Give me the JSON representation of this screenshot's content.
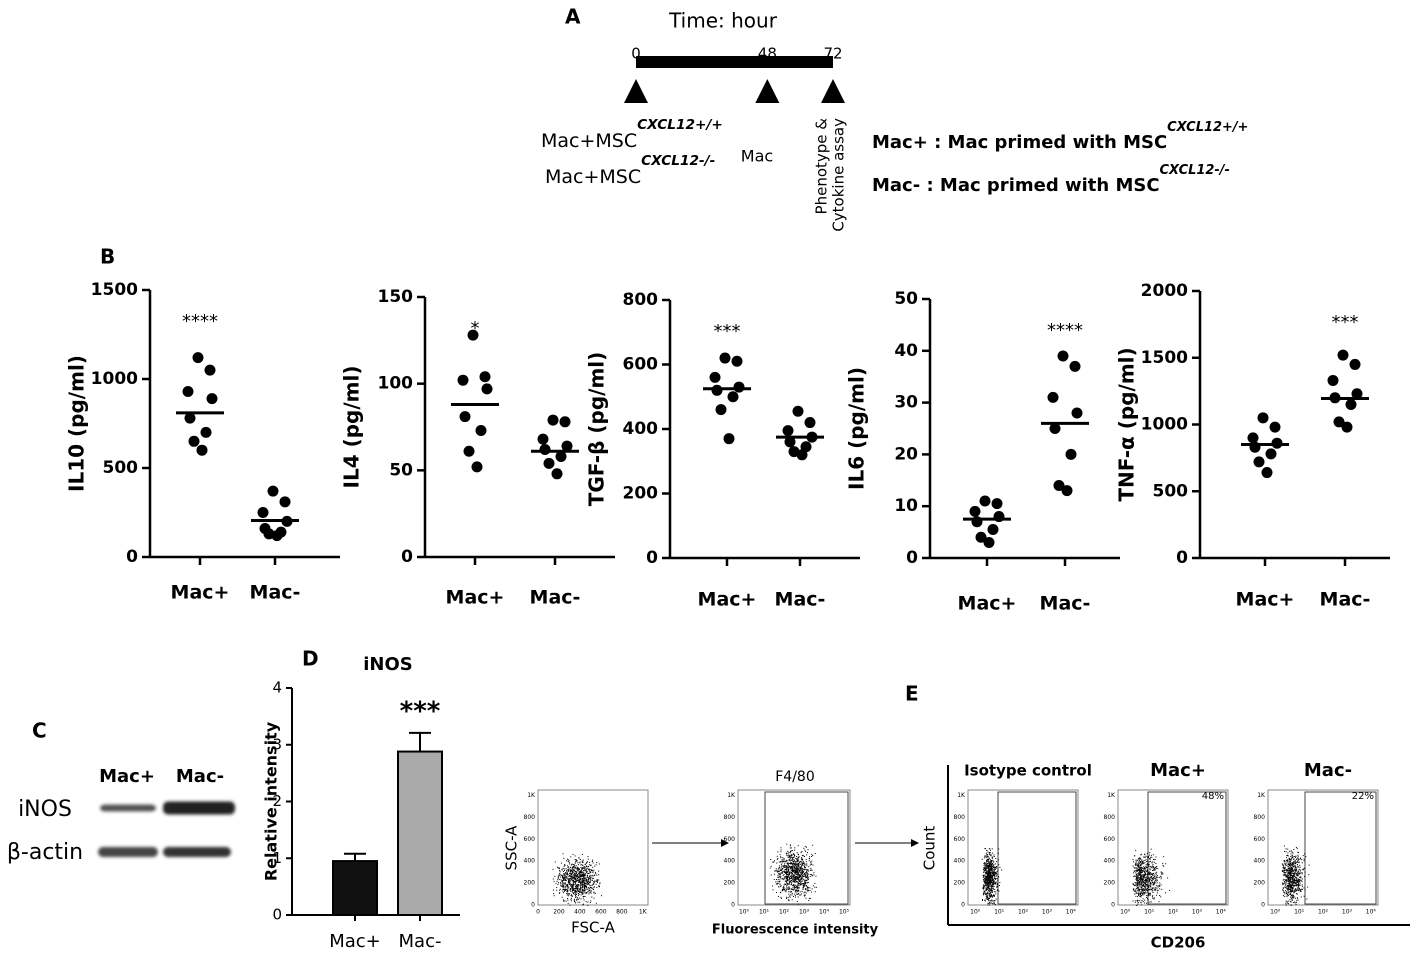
{
  "panels": {
    "A": "A",
    "B": "B",
    "C": "C",
    "D": "D",
    "E": "E"
  },
  "timeline": {
    "title": "Time: hour",
    "ticks": [
      0,
      48,
      72
    ],
    "xlim": [
      0,
      72
    ],
    "start_labels": [
      {
        "text": "Mac+MSC",
        "sup": "CXCL12+/+"
      },
      {
        "text": "Mac+MSC",
        "sup": "CXCL12-/-"
      }
    ],
    "mid_label": "Mac",
    "end_label": [
      "Phenotype &",
      "Cytokine assay"
    ],
    "legend": [
      {
        "text": "Mac+ : Mac primed with MSC",
        "sup": "CXCL12+/+"
      },
      {
        "text": "Mac- : Mac primed with MSC",
        "sup": "CXCL12-/-"
      }
    ]
  },
  "chart_data": [
    {
      "type": "strip",
      "ylabel": "IL10 (pg/ml)",
      "categories": [
        "Mac+",
        "Mac-"
      ],
      "significance": [
        "****",
        null
      ],
      "color": "#000000",
      "ylim": [
        0,
        1500
      ],
      "yticks": [
        0,
        500,
        1000,
        1500
      ],
      "groups": [
        {
          "values": [
            1120,
            1050,
            930,
            890,
            780,
            700,
            650,
            600
          ],
          "mean": 810
        },
        {
          "values": [
            370,
            310,
            250,
            200,
            160,
            140,
            130,
            120
          ],
          "mean": 205
        }
      ]
    },
    {
      "type": "strip",
      "ylabel": "IL4 (pg/ml)",
      "categories": [
        "Mac+",
        "Mac-"
      ],
      "significance": [
        "*",
        null
      ],
      "color": "#000000",
      "ylim": [
        0,
        150
      ],
      "yticks": [
        0,
        50,
        100,
        150
      ],
      "groups": [
        {
          "values": [
            128,
            104,
            102,
            97,
            81,
            73,
            61,
            52
          ],
          "mean": 88
        },
        {
          "values": [
            79,
            78,
            68,
            64,
            62,
            58,
            54,
            48
          ],
          "mean": 61
        }
      ]
    },
    {
      "type": "strip",
      "ylabel": "TGF-β (pg/ml)",
      "categories": [
        "Mac+",
        "Mac-"
      ],
      "significance": [
        "***",
        null
      ],
      "color": "#000000",
      "ylim": [
        0,
        800
      ],
      "yticks": [
        0,
        200,
        400,
        600,
        800
      ],
      "groups": [
        {
          "values": [
            620,
            610,
            560,
            530,
            520,
            500,
            460,
            370
          ],
          "mean": 525
        },
        {
          "values": [
            455,
            420,
            395,
            375,
            360,
            345,
            330,
            320
          ],
          "mean": 375
        }
      ]
    },
    {
      "type": "strip",
      "ylabel": "IL6 (pg/ml)",
      "categories": [
        "Mac+",
        "Mac-"
      ],
      "significance": [
        null,
        "****"
      ],
      "color": "#000000",
      "ylim": [
        0,
        50
      ],
      "yticks": [
        0,
        10,
        20,
        30,
        40,
        50
      ],
      "groups": [
        {
          "values": [
            11,
            10.5,
            9,
            8,
            7,
            5.5,
            4,
            3
          ],
          "mean": 7.5
        },
        {
          "values": [
            39,
            37,
            31,
            28,
            25,
            20,
            14,
            13
          ],
          "mean": 26
        }
      ]
    },
    {
      "type": "strip",
      "ylabel": "TNF-α (pg/ml)",
      "categories": [
        "Mac+",
        "Mac-"
      ],
      "significance": [
        null,
        "***"
      ],
      "color": "#000000",
      "ylim": [
        0,
        2000
      ],
      "yticks": [
        0,
        500,
        1000,
        1500,
        2000
      ],
      "groups": [
        {
          "values": [
            1050,
            980,
            900,
            860,
            830,
            780,
            720,
            640
          ],
          "mean": 850
        },
        {
          "values": [
            1520,
            1450,
            1330,
            1230,
            1200,
            1150,
            1020,
            980
          ],
          "mean": 1195
        }
      ]
    },
    {
      "type": "bar",
      "title": "iNOS",
      "ylabel": "Relative intensity",
      "categories": [
        "Mac+",
        "Mac-"
      ],
      "significance": [
        null,
        "***"
      ],
      "values": [
        0.95,
        2.88
      ],
      "errors": [
        0.13,
        0.33
      ],
      "colors": [
        "#111111",
        "#aaaaaa"
      ],
      "ylim": [
        0,
        4
      ],
      "yticks": [
        0,
        1,
        2,
        3,
        4
      ]
    }
  ],
  "blot": {
    "lanes": [
      "Mac+",
      "Mac-"
    ],
    "rows": [
      "iNOS",
      "β-actin"
    ]
  },
  "gating": [
    {
      "ylabel": "SSC-A",
      "xlabel": "FSC-A",
      "log": false,
      "xlim": [
        0,
        1050
      ],
      "ylim": [
        0,
        1050
      ],
      "xticks": [
        0,
        200,
        400,
        600,
        800,
        {
          "value": 1000,
          "label": "1K"
        }
      ],
      "yticks": [
        0,
        200,
        400,
        600,
        800,
        {
          "value": 1000,
          "label": "1K"
        }
      ]
    },
    {
      "title": "F4/80",
      "xlabel": "Fluorescence intensity",
      "log": true,
      "xlim": [
        0.5,
        200000
      ],
      "ylim": [
        0,
        1050
      ],
      "xticks": [
        {
          "value": 1,
          "label": "10⁰"
        },
        {
          "value": 10,
          "label": "10¹"
        },
        {
          "value": 100,
          "label": "10²"
        },
        {
          "value": 1000,
          "label": "10³"
        },
        {
          "value": 10000,
          "label": "10⁴"
        },
        {
          "value": 100000,
          "label": "10⁵"
        }
      ],
      "yticks": [
        0,
        200,
        400,
        600,
        800,
        {
          "value": 1000,
          "label": "1K"
        }
      ]
    }
  ],
  "cd206": {
    "ylabel": "Count",
    "xlabel": "CD206",
    "xlim": [
      0.5,
      20000
    ],
    "ylim": [
      0,
      1050
    ],
    "xticks": [
      {
        "value": 1,
        "label": "10⁰"
      },
      {
        "value": 10,
        "label": "10¹"
      },
      {
        "value": 100,
        "label": "10²"
      },
      {
        "value": 1000,
        "label": "10³"
      },
      {
        "value": 10000,
        "label": "10⁴"
      }
    ],
    "yticks": [
      0,
      200,
      400,
      600,
      800,
      {
        "value": 1000,
        "label": "1K"
      }
    ],
    "panels": [
      {
        "title": "Isotype control"
      },
      {
        "title": "Mac+",
        "percent": "48%"
      },
      {
        "title": "Mac-",
        "percent": "22%"
      }
    ]
  }
}
